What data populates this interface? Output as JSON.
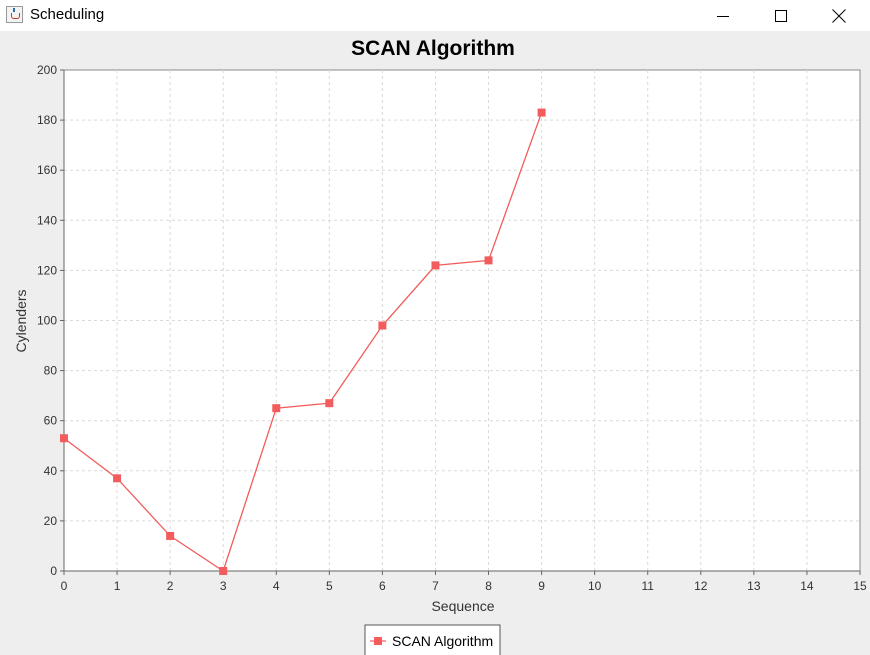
{
  "window": {
    "title": "Scheduling",
    "icons": {
      "app": "java-cup-icon",
      "minimize": "minimize-icon",
      "maximize": "maximize-icon",
      "close": "close-icon"
    }
  },
  "colors": {
    "series": "#f25c5c",
    "grid": "#d9d9d9",
    "plot_background": "#ffffff",
    "window_background": "#eeeeee"
  },
  "chart_data": {
    "type": "line",
    "title": "SCAN Algorithm",
    "xlabel": "Sequence",
    "ylabel": "Cylenders",
    "xlim": [
      0,
      15
    ],
    "ylim": [
      0,
      200
    ],
    "x_ticks": [
      0,
      1,
      2,
      3,
      4,
      5,
      6,
      7,
      8,
      9,
      10,
      11,
      12,
      13,
      14,
      15
    ],
    "y_ticks": [
      0,
      20,
      40,
      60,
      80,
      100,
      120,
      140,
      160,
      180,
      200
    ],
    "grid": true,
    "legend": "bottom-center",
    "series": [
      {
        "name": "SCAN Algorithm",
        "marker": "square",
        "x": [
          0,
          1,
          2,
          3,
          4,
          5,
          6,
          7,
          8,
          9
        ],
        "y": [
          53,
          37,
          14,
          0,
          65,
          67,
          98,
          122,
          124,
          183
        ]
      }
    ]
  }
}
